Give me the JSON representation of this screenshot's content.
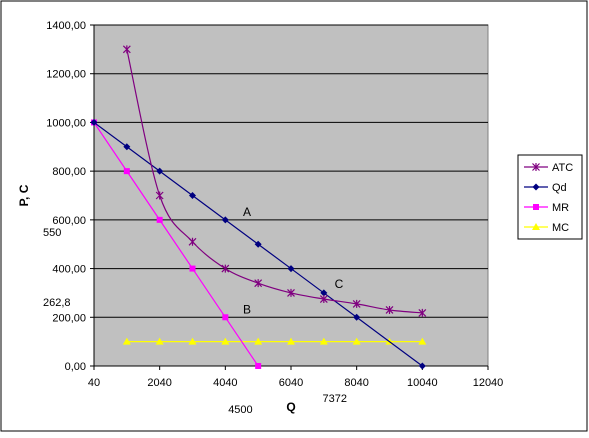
{
  "chart_data": {
    "type": "line",
    "title": "",
    "xlabel": "Q",
    "ylabel": "P, C",
    "xlim": [
      40,
      12040
    ],
    "ylim": [
      0,
      1400
    ],
    "x_ticks": [
      40,
      2040,
      4040,
      6040,
      8040,
      10040,
      12040
    ],
    "x_tick_labels": [
      "40",
      "2040",
      "4040",
      "6040",
      "8040",
      "10040",
      "12040"
    ],
    "y_ticks": [
      0,
      200,
      400,
      600,
      800,
      1000,
      1200,
      1400
    ],
    "y_tick_labels": [
      "0,00",
      "200,00",
      "400,00",
      "600,00",
      "800,00",
      "1000,00",
      "1200,00",
      "1400,00"
    ],
    "grid": "horizontal",
    "plot_background": "#c0c0c0",
    "legend_position": "right",
    "series": [
      {
        "name": "ATC",
        "color": "#800080",
        "marker": "asterisk",
        "smooth": true,
        "x": [
          1040,
          2040,
          3040,
          4040,
          5040,
          6040,
          7040,
          8040,
          9040,
          10040
        ],
        "y": [
          1300,
          700,
          510,
          400,
          340,
          300,
          275,
          255,
          230,
          218
        ]
      },
      {
        "name": "Qd",
        "color": "#000080",
        "marker": "diamond",
        "smooth": false,
        "x": [
          40,
          1040,
          2040,
          3040,
          4040,
          5040,
          6040,
          7040,
          8040,
          10040
        ],
        "y": [
          1000,
          900,
          800,
          700,
          600,
          500,
          400,
          300,
          200,
          0
        ]
      },
      {
        "name": "MR",
        "color": "#ff00ff",
        "marker": "square",
        "smooth": false,
        "x": [
          40,
          1040,
          2040,
          3040,
          4040,
          5040
        ],
        "y": [
          1000,
          800,
          600,
          400,
          200,
          0
        ]
      },
      {
        "name": "MC",
        "color": "#ffff00",
        "marker": "triangle",
        "smooth": false,
        "x": [
          1040,
          2040,
          3040,
          4040,
          5040,
          6040,
          7040,
          8040,
          9040,
          10040
        ],
        "y": [
          100,
          100,
          100,
          100,
          100,
          100,
          100,
          100,
          100,
          100
        ]
      }
    ],
    "annotations": [
      {
        "text": "A",
        "x": 4700,
        "y": 615
      },
      {
        "text": "B",
        "x": 4700,
        "y": 215
      },
      {
        "text": "C",
        "x": 7500,
        "y": 320
      }
    ],
    "extra_y_labels": [
      {
        "text": "550",
        "y": 550
      },
      {
        "text": "262,8",
        "y": 262.8
      }
    ],
    "extra_x_labels": [
      {
        "text": "4500",
        "x": 4500
      },
      {
        "text": "7372",
        "x": 7372
      }
    ]
  }
}
